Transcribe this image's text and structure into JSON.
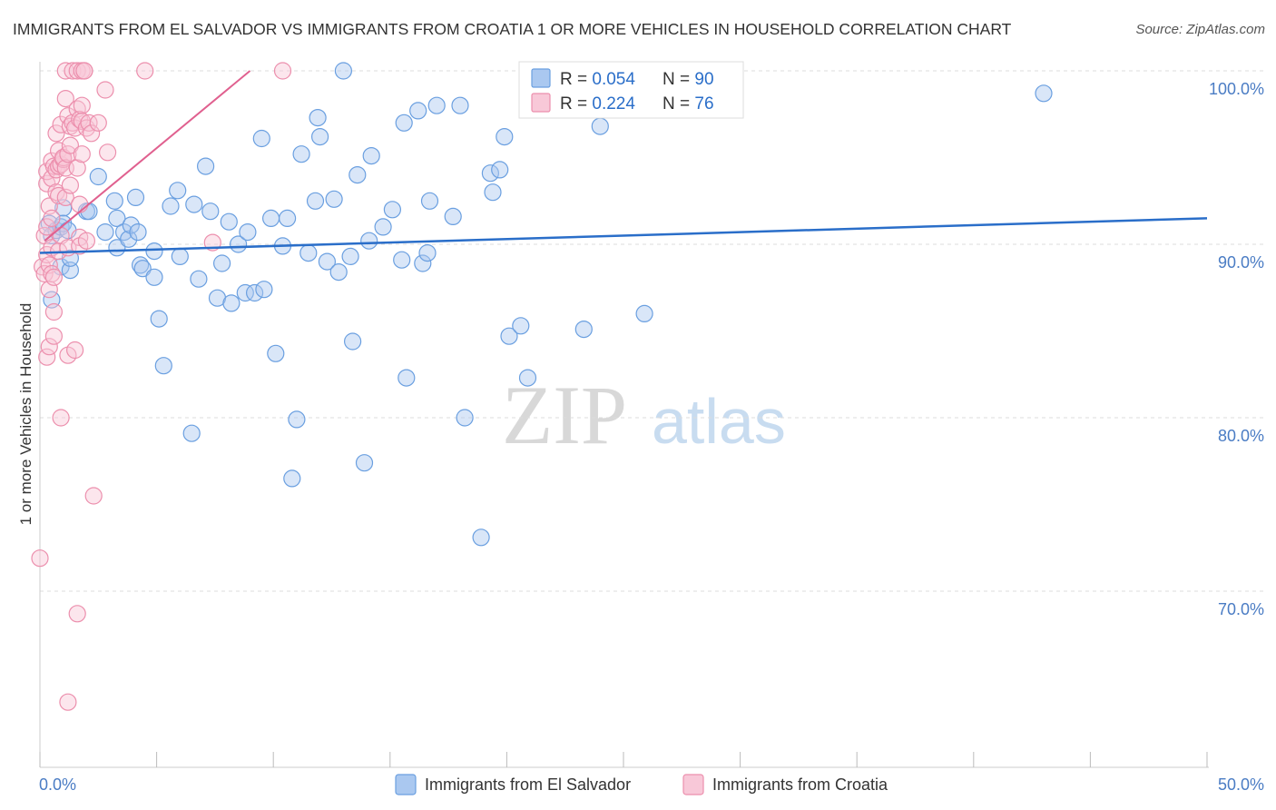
{
  "chart_data": {
    "type": "scatter",
    "title": "IMMIGRANTS FROM EL SALVADOR VS IMMIGRANTS FROM CROATIA 1 OR MORE VEHICLES IN HOUSEHOLD CORRELATION CHART",
    "source": "Source: ZipAtlas.com",
    "xlabel": "",
    "ylabel": "1 or more Vehicles in Household",
    "xlim": [
      0,
      50
    ],
    "ylim": [
      60,
      100
    ],
    "x_tick_labels": {
      "min": "0.0%",
      "max": "50.0%"
    },
    "y_ticks": [
      {
        "value": 100,
        "label": "100.0%"
      },
      {
        "value": 90,
        "label": "90.0%"
      },
      {
        "value": 80,
        "label": "80.0%"
      },
      {
        "value": 70,
        "label": "70.0%"
      }
    ],
    "watermark": {
      "zip": "ZIP",
      "atlas": "atlas"
    },
    "series": [
      {
        "name": "Immigrants from El Salvador",
        "color": "#6a9fe0",
        "fill": "#aac8f0",
        "trend_color": "#2a6ec9",
        "R": "0.054",
        "N": "90",
        "trend": {
          "x": [
            0,
            50
          ],
          "y": [
            89.5,
            91.5
          ]
        },
        "points": [
          [
            0.4,
            91.2
          ],
          [
            0.5,
            90.5
          ],
          [
            0.5,
            86.8
          ],
          [
            0.7,
            90.8
          ],
          [
            0.9,
            88.7
          ],
          [
            0.9,
            91.0
          ],
          [
            1.0,
            92.1
          ],
          [
            1.0,
            91.2
          ],
          [
            1.2,
            90.8
          ],
          [
            1.3,
            88.5
          ],
          [
            1.3,
            89.2
          ],
          [
            2.0,
            91.9
          ],
          [
            2.1,
            91.9
          ],
          [
            2.5,
            93.9
          ],
          [
            2.8,
            90.7
          ],
          [
            3.2,
            92.5
          ],
          [
            3.3,
            91.5
          ],
          [
            3.3,
            89.8
          ],
          [
            3.6,
            90.7
          ],
          [
            3.8,
            90.3
          ],
          [
            3.9,
            91.1
          ],
          [
            4.1,
            92.7
          ],
          [
            4.2,
            90.7
          ],
          [
            4.3,
            88.8
          ],
          [
            4.4,
            88.6
          ],
          [
            4.9,
            89.6
          ],
          [
            4.9,
            88.1
          ],
          [
            5.1,
            85.7
          ],
          [
            5.3,
            83.0
          ],
          [
            5.6,
            92.2
          ],
          [
            5.9,
            93.1
          ],
          [
            6.0,
            89.3
          ],
          [
            6.5,
            79.1
          ],
          [
            6.6,
            92.3
          ],
          [
            6.8,
            88.0
          ],
          [
            7.1,
            94.5
          ],
          [
            7.3,
            91.9
          ],
          [
            7.6,
            86.9
          ],
          [
            7.8,
            88.9
          ],
          [
            8.1,
            91.3
          ],
          [
            8.2,
            86.6
          ],
          [
            8.5,
            90.0
          ],
          [
            8.8,
            87.2
          ],
          [
            8.9,
            90.7
          ],
          [
            9.2,
            87.2
          ],
          [
            9.5,
            96.1
          ],
          [
            9.6,
            87.4
          ],
          [
            9.9,
            91.5
          ],
          [
            10.1,
            83.7
          ],
          [
            10.4,
            89.9
          ],
          [
            10.6,
            91.5
          ],
          [
            10.8,
            76.5
          ],
          [
            11.0,
            79.9
          ],
          [
            11.2,
            95.2
          ],
          [
            11.5,
            89.5
          ],
          [
            11.8,
            92.5
          ],
          [
            11.9,
            97.3
          ],
          [
            12.0,
            96.2
          ],
          [
            12.3,
            89.0
          ],
          [
            12.6,
            92.6
          ],
          [
            12.8,
            88.4
          ],
          [
            13.0,
            100.0
          ],
          [
            13.3,
            89.3
          ],
          [
            13.4,
            84.4
          ],
          [
            13.6,
            94.0
          ],
          [
            13.9,
            77.4
          ],
          [
            14.1,
            90.2
          ],
          [
            14.2,
            95.1
          ],
          [
            14.7,
            91.0
          ],
          [
            15.1,
            92.0
          ],
          [
            15.5,
            89.1
          ],
          [
            15.6,
            97.0
          ],
          [
            15.7,
            82.3
          ],
          [
            16.2,
            97.7
          ],
          [
            16.4,
            88.9
          ],
          [
            16.6,
            89.5
          ],
          [
            16.7,
            92.5
          ],
          [
            17.0,
            98.0
          ],
          [
            17.7,
            91.6
          ],
          [
            18.0,
            98.0
          ],
          [
            18.2,
            80.0
          ],
          [
            18.9,
            73.1
          ],
          [
            19.3,
            94.1
          ],
          [
            19.4,
            93.0
          ],
          [
            19.7,
            94.3
          ],
          [
            19.9,
            96.2
          ],
          [
            20.1,
            84.7
          ],
          [
            20.6,
            85.3
          ],
          [
            20.9,
            82.3
          ],
          [
            23.3,
            85.1
          ],
          [
            24.0,
            96.8
          ],
          [
            25.9,
            86.0
          ],
          [
            43.0,
            98.7
          ]
        ]
      },
      {
        "name": "Immigrants from Croatia",
        "color": "#ec8fad",
        "fill": "#f8c8d8",
        "trend_color": "#e0608f",
        "R": "0.224",
        "N": "76",
        "trend": {
          "x": [
            0.2,
            9.0
          ],
          "y": [
            90.2,
            100.0
          ]
        },
        "points": [
          [
            0.0,
            71.9
          ],
          [
            0.1,
            88.7
          ],
          [
            0.2,
            88.3
          ],
          [
            0.2,
            90.5
          ],
          [
            0.3,
            91.0
          ],
          [
            0.3,
            93.5
          ],
          [
            0.3,
            94.2
          ],
          [
            0.3,
            89.4
          ],
          [
            0.3,
            83.5
          ],
          [
            0.4,
            88.8
          ],
          [
            0.4,
            87.4
          ],
          [
            0.4,
            92.2
          ],
          [
            0.4,
            84.1
          ],
          [
            0.5,
            91.5
          ],
          [
            0.5,
            93.8
          ],
          [
            0.5,
            94.8
          ],
          [
            0.5,
            89.8
          ],
          [
            0.5,
            88.3
          ],
          [
            0.6,
            86.1
          ],
          [
            0.6,
            84.7
          ],
          [
            0.6,
            88.1
          ],
          [
            0.6,
            94.5
          ],
          [
            0.7,
            96.4
          ],
          [
            0.7,
            93.0
          ],
          [
            0.7,
            94.3
          ],
          [
            0.8,
            92.8
          ],
          [
            0.8,
            94.5
          ],
          [
            0.8,
            95.4
          ],
          [
            0.8,
            89.6
          ],
          [
            0.9,
            80.0
          ],
          [
            0.9,
            94.6
          ],
          [
            0.9,
            96.9
          ],
          [
            0.9,
            90.5
          ],
          [
            1.0,
            95.0
          ],
          [
            1.0,
            94.9
          ],
          [
            1.0,
            95.0
          ],
          [
            1.1,
            94.4
          ],
          [
            1.1,
            98.4
          ],
          [
            1.1,
            92.7
          ],
          [
            1.1,
            100.0
          ],
          [
            1.2,
            95.2
          ],
          [
            1.2,
            97.4
          ],
          [
            1.2,
            83.6
          ],
          [
            1.2,
            89.8
          ],
          [
            1.2,
            63.6
          ],
          [
            1.3,
            95.7
          ],
          [
            1.3,
            96.8
          ],
          [
            1.3,
            93.4
          ],
          [
            1.4,
            100.0
          ],
          [
            1.4,
            97.0
          ],
          [
            1.5,
            96.7
          ],
          [
            1.5,
            83.9
          ],
          [
            1.6,
            68.7
          ],
          [
            1.6,
            97.8
          ],
          [
            1.6,
            100.0
          ],
          [
            1.6,
            94.4
          ],
          [
            1.7,
            97.2
          ],
          [
            1.7,
            92.3
          ],
          [
            1.7,
            90.4
          ],
          [
            1.7,
            89.9
          ],
          [
            1.8,
            100.0
          ],
          [
            1.8,
            98.0
          ],
          [
            1.8,
            97.1
          ],
          [
            1.8,
            95.2
          ],
          [
            1.9,
            100.0
          ],
          [
            1.9,
            100.0
          ],
          [
            2.0,
            96.7
          ],
          [
            2.0,
            90.2
          ],
          [
            2.1,
            97.0
          ],
          [
            2.2,
            96.4
          ],
          [
            2.3,
            75.5
          ],
          [
            2.5,
            97.0
          ],
          [
            2.8,
            98.9
          ],
          [
            2.9,
            95.3
          ],
          [
            4.5,
            100.0
          ],
          [
            7.4,
            90.1
          ],
          [
            10.4,
            100.0
          ]
        ]
      }
    ]
  }
}
